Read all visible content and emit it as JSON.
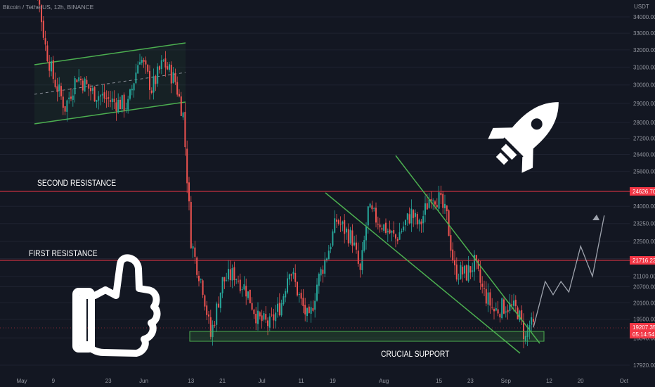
{
  "symbol_title": "Bitcoin / TetherUS, 12h, BINANCE",
  "currency_label": "USDT",
  "colors": {
    "background": "#131722",
    "up": "#26a69a",
    "down": "#ef5350",
    "resistance": "#f23645",
    "trendline": "#4caf50",
    "projection": "#9ea3ad",
    "axis_text": "#9598a1",
    "annotation_text": "#ffffff"
  },
  "annotations": {
    "second_resistance": "SECOND RESISTANCE",
    "first_resistance": "FIRST RESISTANCE",
    "crucial_support": "CRUCIAL SUPPORT"
  },
  "icons": [
    "rocket-icon",
    "thumbs-up-icon"
  ],
  "price_badges": {
    "second_resistance": "24626.70",
    "first_resistance": "21716.23",
    "current_price": "19207.35",
    "countdown": "05:14:54"
  },
  "chart_data": {
    "type": "candlestick",
    "title": "Bitcoin / TetherUS, 12h, BINANCE",
    "ylabel": "USDT",
    "ylim": [
      17300,
      35600
    ],
    "y_scale": "log",
    "y_ticks": [
      "34000.00",
      "33000.00",
      "32000.00",
      "31000.00",
      "30000.00",
      "29000.00",
      "28000.00",
      "27200.00",
      "26400.00",
      "25600.00",
      "24000.00",
      "23250.00",
      "22500.00",
      "21800.00",
      "21100.00",
      "20700.00",
      "20100.00",
      "19500.00",
      "18840.00",
      "17920.00"
    ],
    "x_ticks": [
      "May",
      "9",
      "23",
      "Jun",
      "13",
      "21",
      "Jul",
      "11",
      "19",
      "Aug",
      "15",
      "23",
      "Sep",
      "12",
      "20",
      "Oct"
    ],
    "levels": [
      {
        "name": "Second Resistance",
        "price": 24626.7
      },
      {
        "name": "First Resistance",
        "price": 21716.23
      }
    ],
    "support_zone": {
      "name": "Crucial Support",
      "low": 18950,
      "high": 19250
    },
    "last_price": 19207.35,
    "price_path": [
      {
        "date": "2022-05-01",
        "price": 37800
      },
      {
        "date": "2022-05-05",
        "price": 35600
      },
      {
        "date": "2022-05-07",
        "price": 32200
      },
      {
        "date": "2022-05-09",
        "price": 30400
      },
      {
        "date": "2022-05-12",
        "price": 28800
      },
      {
        "date": "2022-05-15",
        "price": 30500
      },
      {
        "date": "2022-05-19",
        "price": 29600
      },
      {
        "date": "2022-05-24",
        "price": 29100
      },
      {
        "date": "2022-05-28",
        "price": 28900
      },
      {
        "date": "2022-05-31",
        "price": 31700
      },
      {
        "date": "2022-06-03",
        "price": 29800
      },
      {
        "date": "2022-06-06",
        "price": 31300
      },
      {
        "date": "2022-06-09",
        "price": 30200
      },
      {
        "date": "2022-06-11",
        "price": 28400
      },
      {
        "date": "2022-06-13",
        "price": 22600
      },
      {
        "date": "2022-06-14",
        "price": 21800
      },
      {
        "date": "2022-06-16",
        "price": 20700
      },
      {
        "date": "2022-06-18",
        "price": 18900
      },
      {
        "date": "2022-06-21",
        "price": 20900
      },
      {
        "date": "2022-06-24",
        "price": 21200
      },
      {
        "date": "2022-06-27",
        "price": 20600
      },
      {
        "date": "2022-06-30",
        "price": 19500
      },
      {
        "date": "2022-07-03",
        "price": 19300
      },
      {
        "date": "2022-07-06",
        "price": 20100
      },
      {
        "date": "2022-07-08",
        "price": 21500
      },
      {
        "date": "2022-07-11",
        "price": 20100
      },
      {
        "date": "2022-07-13",
        "price": 19400
      },
      {
        "date": "2022-07-15",
        "price": 20800
      },
      {
        "date": "2022-07-18",
        "price": 22200
      },
      {
        "date": "2022-07-20",
        "price": 23400
      },
      {
        "date": "2022-07-24",
        "price": 22600
      },
      {
        "date": "2022-07-26",
        "price": 21200
      },
      {
        "date": "2022-07-28",
        "price": 23800
      },
      {
        "date": "2022-07-31",
        "price": 23300
      },
      {
        "date": "2022-08-04",
        "price": 22600
      },
      {
        "date": "2022-08-08",
        "price": 23700
      },
      {
        "date": "2022-08-10",
        "price": 23100
      },
      {
        "date": "2022-08-13",
        "price": 24600
      },
      {
        "date": "2022-08-15",
        "price": 24300
      },
      {
        "date": "2022-08-17",
        "price": 23500
      },
      {
        "date": "2022-08-19",
        "price": 21300
      },
      {
        "date": "2022-08-22",
        "price": 21200
      },
      {
        "date": "2022-08-24",
        "price": 21600
      },
      {
        "date": "2022-08-26",
        "price": 20600
      },
      {
        "date": "2022-08-29",
        "price": 19800
      },
      {
        "date": "2022-09-01",
        "price": 20000
      },
      {
        "date": "2022-09-04",
        "price": 19800
      },
      {
        "date": "2022-09-06",
        "price": 18800
      },
      {
        "date": "2022-09-07",
        "price": 19300
      },
      {
        "date": "2022-09-08",
        "price": 19207.35
      }
    ],
    "projection_path": [
      {
        "date": "2022-09-08",
        "price": 19207.35
      },
      {
        "date": "2022-09-11",
        "price": 20900
      },
      {
        "date": "2022-09-13",
        "price": 20400
      },
      {
        "date": "2022-09-15",
        "price": 20900
      },
      {
        "date": "2022-09-17",
        "price": 20500
      },
      {
        "date": "2022-09-20",
        "price": 22300
      },
      {
        "date": "2022-09-23",
        "price": 21100
      },
      {
        "date": "2022-09-26",
        "price": 23600
      }
    ]
  }
}
